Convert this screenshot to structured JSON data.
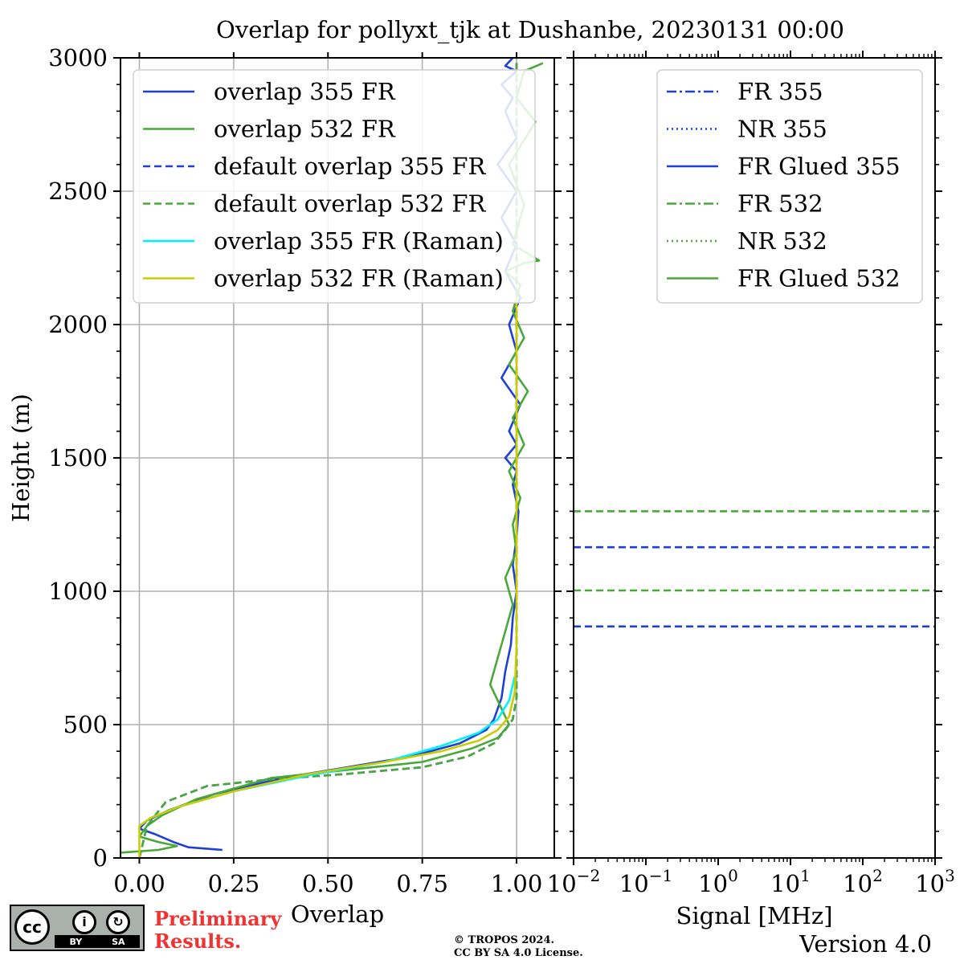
{
  "chart_data": [
    {
      "type": "line",
      "title": "Overlap for pollyxt_tjk at Dushanbe, 20230131 00:00",
      "xlabel": "Overlap",
      "ylabel": "Height (m)",
      "xlim": [
        -0.05,
        1.1
      ],
      "ylim": [
        0,
        3000
      ],
      "xticks": [
        "0.00",
        "0.25",
        "0.50",
        "0.75",
        "1.00"
      ],
      "xtick_values": [
        0,
        0.25,
        0.5,
        0.75,
        1.0
      ],
      "yticks": [
        "0",
        "500",
        "1000",
        "1500",
        "2000",
        "2500",
        "3000"
      ],
      "ytick_values": [
        0,
        500,
        1000,
        1500,
        2000,
        2500,
        3000
      ],
      "grid": true,
      "legend_position": "top-left",
      "series": [
        {
          "name": "overlap 355 FR",
          "color": "#1f3fd6",
          "style": "solid",
          "x": [
            0.22,
            0.13,
            0.09,
            0.04,
            0.0,
            0.02,
            0.08,
            0.2,
            0.38,
            0.55,
            0.72,
            0.85,
            0.92,
            0.94,
            0.96,
            0.97,
            0.985,
            0.99,
            1.0,
            0.99,
            1.0,
            1.005,
            0.99,
            1.0,
            0.97,
            1.0,
            0.98,
            1.01,
            0.96,
            1.0,
            0.98,
            1.01,
            0.97,
            1.0,
            0.96,
            1.0,
            0.95,
            1.0,
            0.97,
            0.99,
            0.96,
            1.0,
            0.97,
            0.99
          ],
          "y": [
            30,
            40,
            60,
            90,
            110,
            140,
            180,
            240,
            300,
            340,
            380,
            430,
            480,
            520,
            600,
            700,
            800,
            900,
            1000,
            1100,
            1200,
            1300,
            1400,
            1450,
            1500,
            1550,
            1600,
            1700,
            1800,
            1900,
            2000,
            2100,
            2200,
            2300,
            2400,
            2500,
            2600,
            2700,
            2800,
            2850,
            2900,
            2950,
            2970,
            3000
          ]
        },
        {
          "name": "overlap 532 FR",
          "color": "#4aa83a",
          "style": "solid",
          "x": [
            -0.05,
            0.05,
            0.1,
            0.05,
            0.0,
            0.02,
            0.06,
            0.15,
            0.35,
            0.55,
            0.75,
            0.88,
            0.95,
            0.98,
            0.93,
            0.95,
            0.97,
            0.99,
            0.97,
            1.0,
            0.99,
            1.01,
            0.98,
            1.02,
            0.99,
            1.03,
            0.98,
            1.02,
            0.99,
            1.01,
            0.97,
            1.02,
            1.06,
            0.99,
            1.02,
            0.98,
            1.05,
            1.0,
            1.02,
            1.07
          ],
          "y": [
            20,
            30,
            45,
            60,
            80,
            120,
            160,
            220,
            300,
            330,
            360,
            410,
            450,
            500,
            650,
            750,
            850,
            950,
            1050,
            1150,
            1250,
            1350,
            1450,
            1550,
            1650,
            1750,
            1850,
            1950,
            2050,
            2150,
            2200,
            2230,
            2240,
            2300,
            2450,
            2600,
            2760,
            2850,
            2950,
            2980
          ]
        },
        {
          "name": "default overlap 355 FR",
          "color": "#1f3fd6",
          "style": "dashed",
          "x": [
            0.0,
            0.02,
            0.07,
            0.18,
            0.35,
            0.55,
            0.75,
            0.87,
            0.94,
            0.97,
            0.99,
            1.0,
            1.0
          ],
          "y": [
            0,
            120,
            210,
            270,
            295,
            315,
            340,
            380,
            430,
            480,
            520,
            600,
            3000
          ]
        },
        {
          "name": "default overlap 532 FR",
          "color": "#4aa83a",
          "style": "dashed",
          "x": [
            0.0,
            0.02,
            0.07,
            0.18,
            0.35,
            0.55,
            0.75,
            0.87,
            0.94,
            0.97,
            0.99,
            1.0,
            1.0
          ],
          "y": [
            0,
            120,
            210,
            270,
            295,
            315,
            340,
            380,
            430,
            480,
            520,
            600,
            3000
          ]
        },
        {
          "name": "overlap 355 FR (Raman)",
          "color": "#00f0ff",
          "style": "solid",
          "x": [
            0.0,
            0.03,
            0.1,
            0.25,
            0.45,
            0.65,
            0.8,
            0.9,
            0.95,
            0.98,
            0.995
          ],
          "y": [
            120,
            150,
            190,
            250,
            310,
            360,
            420,
            470,
            520,
            590,
            680
          ]
        },
        {
          "name": "overlap 532 FR (Raman)",
          "color": "#cccc00",
          "style": "solid",
          "x": [
            0.0,
            0.0,
            0.03,
            0.1,
            0.25,
            0.45,
            0.65,
            0.8,
            0.9,
            0.95,
            0.98,
            0.995,
            1.0,
            1.0
          ],
          "y": [
            0,
            120,
            150,
            190,
            250,
            315,
            360,
            400,
            440,
            480,
            530,
            620,
            800,
            2100
          ]
        }
      ],
      "reference_lines": []
    },
    {
      "type": "line",
      "title": "",
      "xlabel": "Signal [MHz]",
      "ylabel": "",
      "xscale": "log",
      "xlim": [
        0.01,
        1000
      ],
      "ylim": [
        0,
        3000
      ],
      "xticks": [
        {
          "base": "10",
          "exp": "−2"
        },
        {
          "base": "10",
          "exp": "−1"
        },
        {
          "base": "10",
          "exp": "0"
        },
        {
          "base": "10",
          "exp": "1"
        },
        {
          "base": "10",
          "exp": "2"
        },
        {
          "base": "10",
          "exp": "3"
        }
      ],
      "xtick_values": [
        0.01,
        0.1,
        1,
        10,
        100,
        1000
      ],
      "grid": false,
      "legend_position": "top-right",
      "series": [
        {
          "name": "FR 355",
          "color": "#1f3fd6",
          "style": "dashdot",
          "x": [],
          "y": []
        },
        {
          "name": "NR 355",
          "color": "#1f3fd6",
          "style": "dotted",
          "x": [],
          "y": []
        },
        {
          "name": "FR Glued 355",
          "color": "#1f3fd6",
          "style": "solid",
          "x": [],
          "y": []
        },
        {
          "name": "FR 532",
          "color": "#4aa83a",
          "style": "dashdot",
          "x": [],
          "y": []
        },
        {
          "name": "NR 532",
          "color": "#4aa83a",
          "style": "dotted",
          "x": [],
          "y": []
        },
        {
          "name": "FR Glued 532",
          "color": "#4aa83a",
          "style": "solid",
          "x": [],
          "y": []
        }
      ],
      "horizontal_lines": [
        {
          "y": 1300,
          "color": "#4aa83a",
          "style": "dashed"
        },
        {
          "y": 1165,
          "color": "#1f3fd6",
          "style": "dashed"
        },
        {
          "y": 1003,
          "color": "#4aa83a",
          "style": "dashed"
        },
        {
          "y": 868,
          "color": "#1f3fd6",
          "style": "dashed"
        }
      ]
    }
  ],
  "footer": {
    "preliminary_line1": "Preliminary",
    "preliminary_line2": "Results.",
    "copyright_line1": "© TROPOS 2024.",
    "copyright_line2": "CC BY SA 4.0 License.",
    "version": "Version 4.0",
    "badge": {
      "cc": "cc",
      "by_icon": "i",
      "sa_icon": "↻",
      "by": "BY",
      "sa": "SA"
    }
  }
}
